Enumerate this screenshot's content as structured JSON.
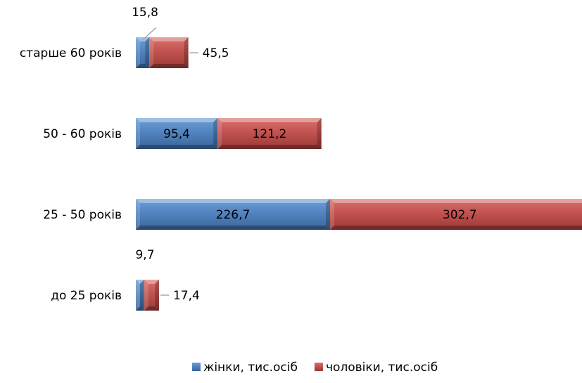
{
  "chart_data": {
    "type": "bar",
    "orientation": "horizontal",
    "stacked": true,
    "title": "",
    "xlabel": "",
    "ylabel": "",
    "grid": false,
    "legend_position": "bottom",
    "categories": [
      "старше 60 років",
      "50 - 60 років",
      "25 - 50 років",
      "до 25 років"
    ],
    "series": [
      {
        "name": "жінки, тис.осіб",
        "color": "#4f81bd",
        "values": [
          15.8,
          95.4,
          226.7,
          9.7
        ],
        "labels": [
          "15,8",
          "95,4",
          "226,7",
          "9,7"
        ]
      },
      {
        "name": "чоловіки, тис.осіб",
        "color": "#c0504d",
        "values": [
          45.5,
          121.2,
          302.7,
          17.4
        ],
        "labels": [
          "45,5",
          "121,2",
          "302,7",
          "17,4"
        ]
      }
    ]
  }
}
